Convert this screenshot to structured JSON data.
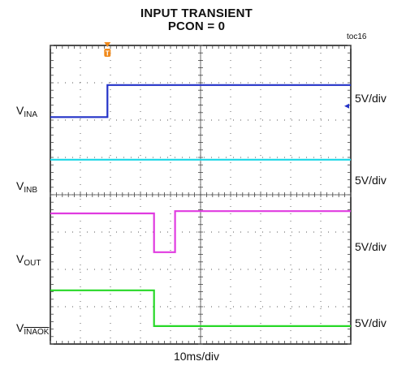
{
  "title": "INPUT TRANSIENT",
  "subtitle": "PCON = 0",
  "tag": "toc16",
  "xlabel": "10ms/div",
  "chart_data": {
    "type": "line",
    "title": "INPUT TRANSIENT",
    "subtitle": "PCON = 0",
    "xlabel": "10ms/div",
    "x_divisions": 10,
    "y_divisions": 8,
    "grid": true,
    "trigger_marker": "T",
    "trigger_x_div": 1.9,
    "series": [
      {
        "name": "V_INA",
        "label_main": "V",
        "label_sub": "INA",
        "overline": false,
        "scale": "5V/div",
        "color": "#2433c8",
        "points": [
          [
            0,
            1.92
          ],
          [
            1.9,
            1.92
          ],
          [
            1.9,
            1.06
          ],
          [
            10,
            1.06
          ]
        ]
      },
      {
        "name": "V_INB",
        "label_main": "V",
        "label_sub": "INB",
        "overline": false,
        "scale": "5V/div",
        "color": "#19d6e6",
        "points": [
          [
            0,
            3.06
          ],
          [
            10,
            3.06
          ]
        ]
      },
      {
        "name": "V_OUT",
        "label_main": "V",
        "label_sub": "OUT",
        "overline": false,
        "scale": "5V/div",
        "color": "#e03be0",
        "points": [
          [
            0,
            4.5
          ],
          [
            3.45,
            4.5
          ],
          [
            3.45,
            5.54
          ],
          [
            4.15,
            5.54
          ],
          [
            4.15,
            4.44
          ],
          [
            10,
            4.44
          ]
        ]
      },
      {
        "name": "V_INAOK",
        "label_main": "V",
        "label_sub": "INAOK",
        "overline": true,
        "scale": "5V/div",
        "color": "#27d827",
        "points": [
          [
            0,
            6.56
          ],
          [
            3.45,
            6.56
          ],
          [
            3.45,
            7.52
          ],
          [
            10,
            7.52
          ]
        ]
      }
    ]
  }
}
